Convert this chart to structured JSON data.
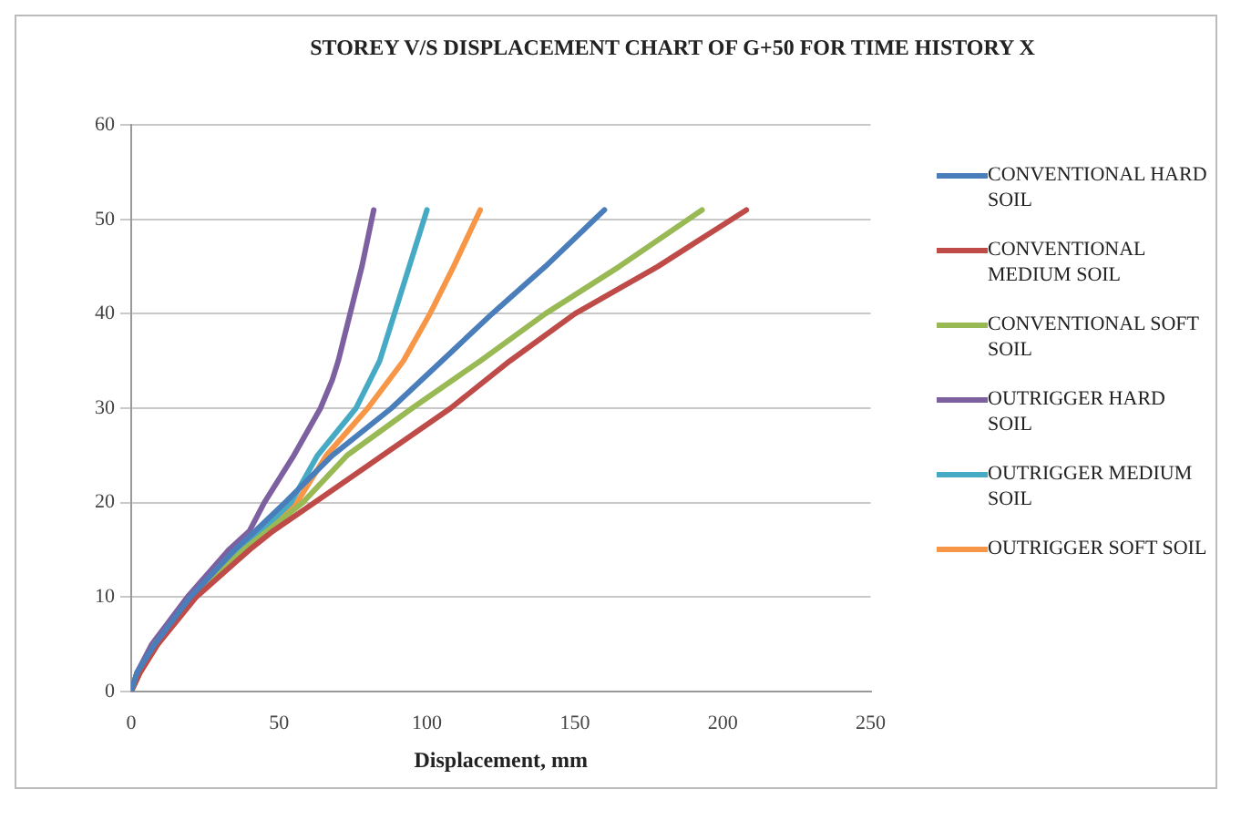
{
  "chart_data": {
    "type": "line",
    "title": "STOREY V/S DISPLACEMENT CHART OF G+50 FOR TIME HISTORY X",
    "xlabel": "Displacement, mm",
    "xlim": [
      0,
      250
    ],
    "xticks": [
      0,
      50,
      100,
      150,
      200,
      250
    ],
    "ylim": [
      0,
      60
    ],
    "yticks": [
      0,
      10,
      20,
      30,
      40,
      50,
      60
    ],
    "grid": "y",
    "legend": "right",
    "marker": "none",
    "line_style": "solid",
    "series": [
      {
        "name": "CONVENTIONAL HARD SOIL",
        "color": "#4a7ebb",
        "x": [
          0,
          2,
          8,
          20,
          35,
          42,
          52,
          68,
          88,
          105,
          122,
          140,
          160
        ],
        "values": [
          0,
          2,
          5,
          10,
          15,
          17,
          20,
          25,
          30,
          35,
          40,
          45,
          51
        ]
      },
      {
        "name": "CONVENTIONAL MEDIUM SOIL",
        "color": "#be4b48",
        "x": [
          0,
          3,
          9,
          22,
          40,
          48,
          62,
          85,
          108,
          128,
          150,
          178,
          208
        ],
        "values": [
          0,
          2,
          5,
          10,
          15,
          17,
          20,
          25,
          30,
          35,
          40,
          45,
          51
        ]
      },
      {
        "name": "CONVENTIONAL SOFT SOIL",
        "color": "#98b954",
        "x": [
          0,
          3,
          8,
          21,
          38,
          46,
          58,
          73,
          95,
          118,
          140,
          165,
          193
        ],
        "values": [
          0,
          2,
          5,
          10,
          15,
          17,
          20,
          25,
          30,
          35,
          40,
          45,
          51
        ]
      },
      {
        "name": "OUTRIGGER HARD SOIL",
        "color": "#7d60a0",
        "x": [
          0,
          2,
          7,
          19,
          33,
          40,
          45,
          55,
          64,
          68,
          70,
          74,
          78,
          82
        ],
        "values": [
          0,
          2,
          5,
          10,
          15,
          17,
          20,
          25,
          30,
          33,
          35,
          40,
          45,
          51
        ]
      },
      {
        "name": "OUTRIGGER MEDIUM SOIL",
        "color": "#46aac5",
        "x": [
          0,
          2,
          8,
          20,
          36,
          44,
          54,
          63,
          76,
          84,
          89,
          94,
          100
        ],
        "values": [
          0,
          2,
          5,
          10,
          15,
          17,
          20,
          25,
          30,
          35,
          40,
          45,
          51
        ]
      },
      {
        "name": "OUTRIGGER SOFT SOIL",
        "color": "#f79646",
        "x": [
          0,
          3,
          9,
          21,
          38,
          46,
          56,
          66,
          80,
          92,
          101,
          109,
          118
        ],
        "values": [
          0,
          2,
          5,
          10,
          15,
          17,
          20,
          25,
          30,
          35,
          40,
          45,
          51
        ]
      }
    ]
  }
}
